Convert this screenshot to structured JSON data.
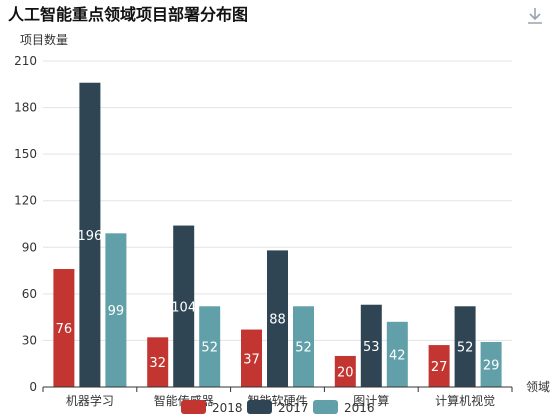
{
  "toolbar": {
    "download_icon": "download-icon"
  },
  "chart_data": {
    "type": "bar",
    "title": "人工智能重点领域项目部署分布图",
    "ylabel": "项目数量",
    "xlabel": "领域",
    "ylim": [
      0,
      210
    ],
    "yticks": [
      0,
      30,
      60,
      90,
      120,
      150,
      180,
      210
    ],
    "categories": [
      "机器学习",
      "智能传感器",
      "智能软硬件",
      "图计算",
      "计算机视觉"
    ],
    "series": [
      {
        "name": "2018",
        "values": [
          76,
          32,
          37,
          20,
          27
        ],
        "color": "#c23531"
      },
      {
        "name": "2017",
        "values": [
          196,
          104,
          88,
          53,
          52
        ],
        "color": "#2f4554"
      },
      {
        "name": "2016",
        "values": [
          99,
          52,
          52,
          42,
          29
        ],
        "color": "#61a0a8"
      }
    ],
    "grid": "horizontal",
    "legend": "bottom-center",
    "data_labels": "inside"
  }
}
